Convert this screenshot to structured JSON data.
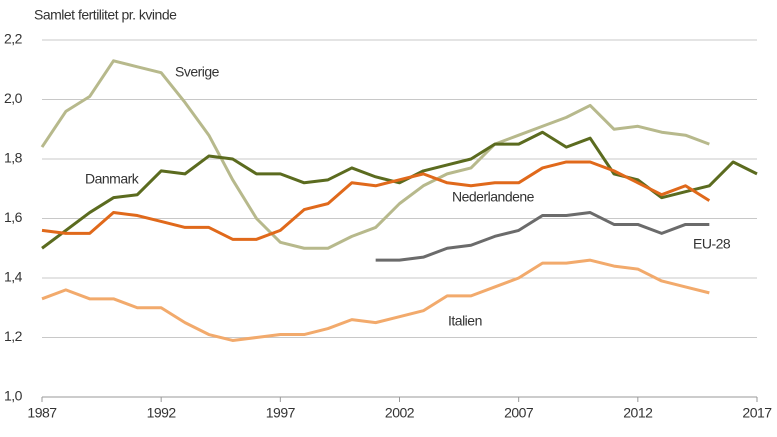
{
  "chart_data": {
    "type": "line",
    "y_axis_label": "Samlet fertilitet pr. kvinde",
    "x": [
      1987,
      1988,
      1989,
      1990,
      1991,
      1992,
      1993,
      1994,
      1995,
      1996,
      1997,
      1998,
      1999,
      2000,
      2001,
      2002,
      2003,
      2004,
      2005,
      2006,
      2007,
      2008,
      2009,
      2010,
      2011,
      2012,
      2013,
      2014,
      2015,
      2016,
      2017
    ],
    "series": [
      {
        "name": "Sverige",
        "color": "#b7b98c",
        "values": [
          1.84,
          1.96,
          2.01,
          2.13,
          2.11,
          2.09,
          1.99,
          1.88,
          1.73,
          1.6,
          1.52,
          1.5,
          1.5,
          1.54,
          1.57,
          1.65,
          1.71,
          1.75,
          1.77,
          1.85,
          1.88,
          1.91,
          1.94,
          1.98,
          1.9,
          1.91,
          1.89,
          1.88,
          1.85,
          null,
          null
        ]
      },
      {
        "name": "Danmark",
        "color": "#5b6b1f",
        "values": [
          1.5,
          1.56,
          1.62,
          1.67,
          1.68,
          1.76,
          1.75,
          1.81,
          1.8,
          1.75,
          1.75,
          1.72,
          1.73,
          1.77,
          1.74,
          1.72,
          1.76,
          1.78,
          1.8,
          1.85,
          1.85,
          1.89,
          1.84,
          1.87,
          1.75,
          1.73,
          1.67,
          1.69,
          1.71,
          1.79,
          1.75
        ]
      },
      {
        "name": "Nederlandene",
        "color": "#e0691b",
        "values": [
          1.56,
          1.55,
          1.55,
          1.62,
          1.61,
          1.59,
          1.57,
          1.57,
          1.53,
          1.53,
          1.56,
          1.63,
          1.65,
          1.72,
          1.71,
          1.73,
          1.75,
          1.72,
          1.71,
          1.72,
          1.72,
          1.77,
          1.79,
          1.79,
          1.76,
          1.72,
          1.68,
          1.71,
          1.66,
          null,
          null
        ]
      },
      {
        "name": "EU-28",
        "color": "#6b6b6b",
        "values": [
          null,
          null,
          null,
          null,
          null,
          null,
          null,
          null,
          null,
          null,
          null,
          null,
          null,
          null,
          1.46,
          1.46,
          1.47,
          1.5,
          1.51,
          1.54,
          1.56,
          1.61,
          1.61,
          1.62,
          1.58,
          1.58,
          1.55,
          1.58,
          1.58,
          null,
          null
        ]
      },
      {
        "name": "Italien",
        "color": "#f2aa6c",
        "values": [
          1.33,
          1.36,
          1.33,
          1.33,
          1.3,
          1.3,
          1.25,
          1.21,
          1.19,
          1.2,
          1.21,
          1.21,
          1.23,
          1.26,
          1.25,
          1.27,
          1.29,
          1.34,
          1.34,
          1.37,
          1.4,
          1.45,
          1.45,
          1.46,
          1.44,
          1.43,
          1.39,
          1.37,
          1.35,
          null,
          null
        ]
      }
    ],
    "xlim": [
      1987,
      2017
    ],
    "xticks": [
      1987,
      1992,
      1997,
      2002,
      2007,
      2012,
      2017
    ],
    "ylim": [
      1.0,
      2.2
    ],
    "yticks": [
      {
        "value": 1.0,
        "label": "1,0"
      },
      {
        "value": 1.2,
        "label": "1,2"
      },
      {
        "value": 1.4,
        "label": "1,4"
      },
      {
        "value": 1.6,
        "label": "1,6"
      },
      {
        "value": 1.8,
        "label": "1,8"
      },
      {
        "value": 2.0,
        "label": "2,0"
      },
      {
        "value": 2.2,
        "label": "2,2"
      }
    ],
    "grid": true
  }
}
